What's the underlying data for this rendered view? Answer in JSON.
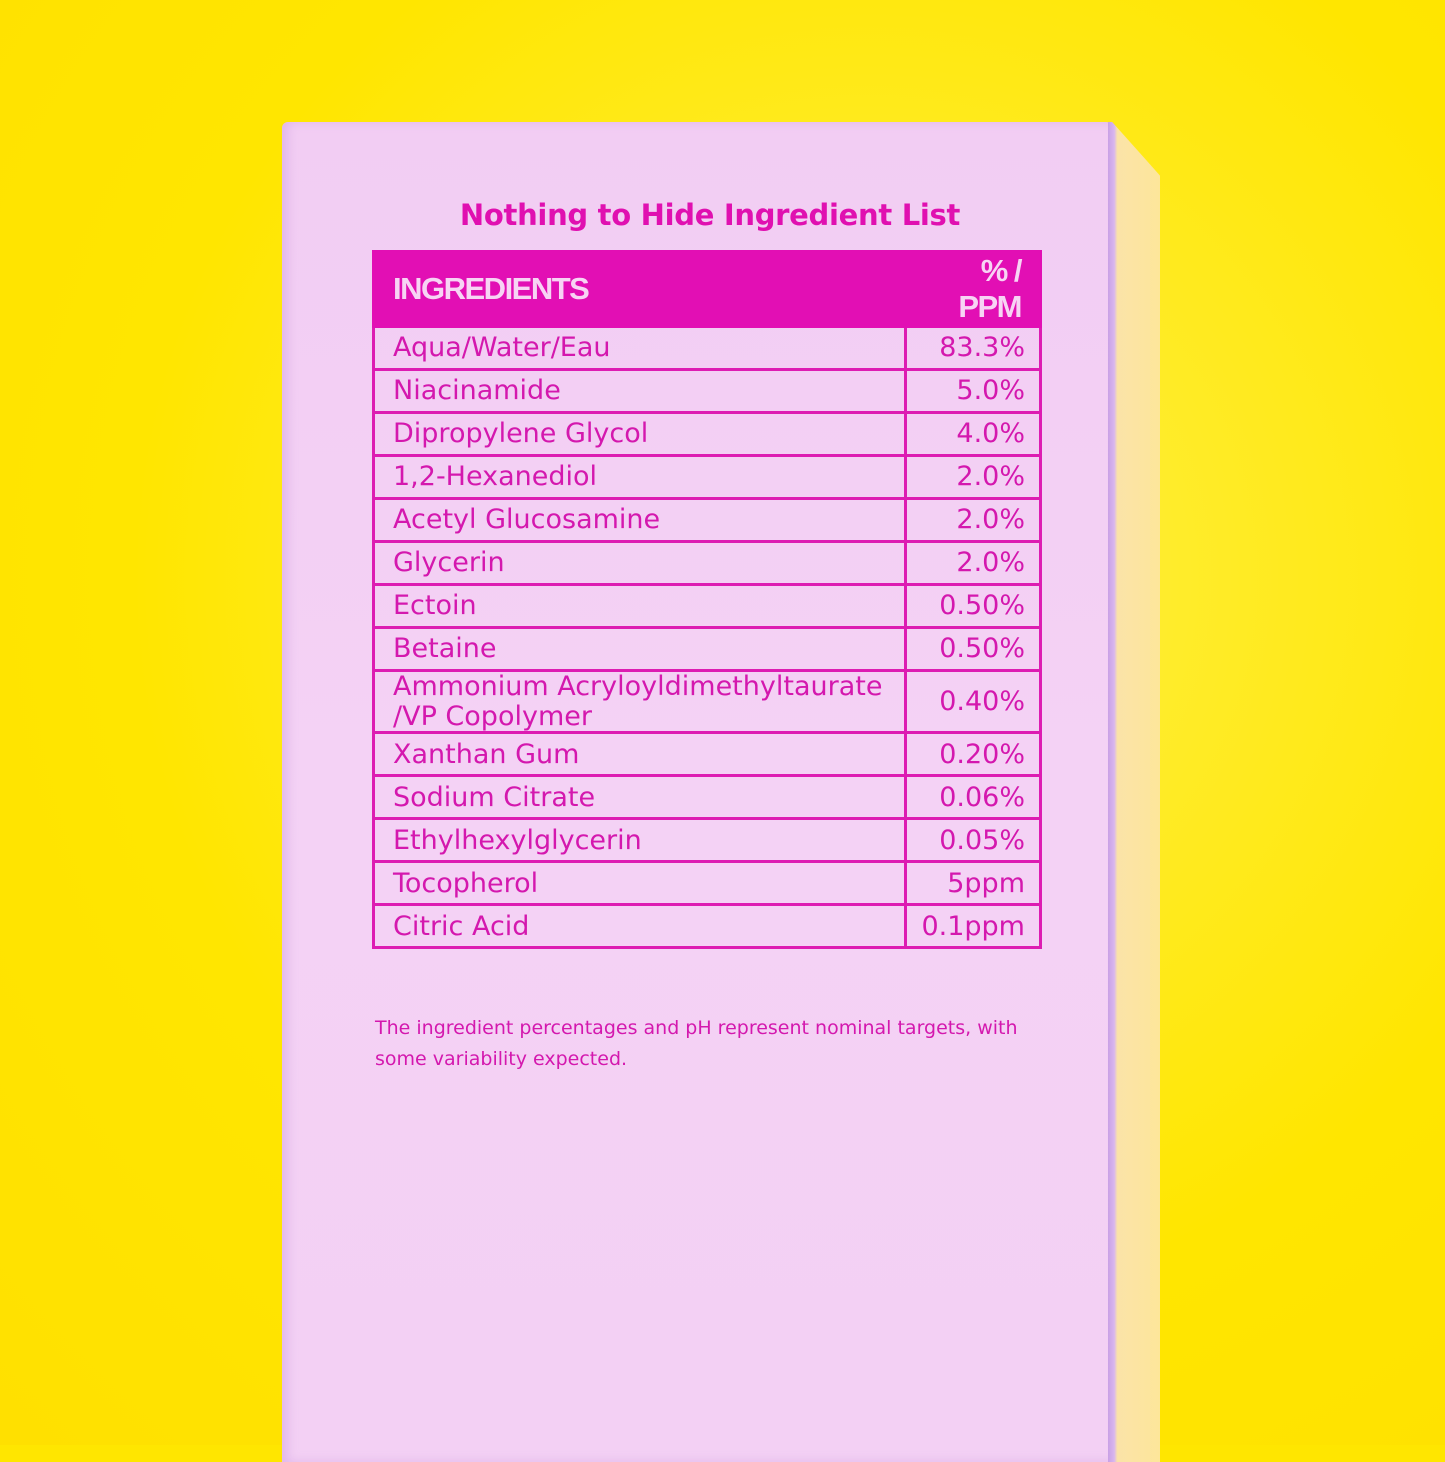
{
  "title": "Nothing to Hide Ingredient List",
  "table": {
    "headers": [
      "INGREDIENTS",
      "% / PPM"
    ],
    "rows": [
      {
        "name": "Aqua/Water/Eau",
        "value": "83.3%"
      },
      {
        "name": "Niacinamide",
        "value": "5.0%"
      },
      {
        "name": "Dipropylene Glycol",
        "value": "4.0%"
      },
      {
        "name": "1,2-Hexanediol",
        "value": "2.0%"
      },
      {
        "name": "Acetyl Glucosamine",
        "value": "2.0%"
      },
      {
        "name": "Glycerin",
        "value": "2.0%"
      },
      {
        "name": "Ectoin",
        "value": "0.50%"
      },
      {
        "name": "Betaine",
        "value": "0.50%"
      },
      {
        "name": "Ammonium Acryloyldimethyltaurate /VP Copolymer",
        "value": "0.40%"
      },
      {
        "name": "Xanthan Gum",
        "value": "0.20%"
      },
      {
        "name": "Sodium Citrate",
        "value": "0.06%"
      },
      {
        "name": "Ethylhexylglycerin",
        "value": "0.05%"
      },
      {
        "name": "Tocopherol",
        "value": "5ppm"
      },
      {
        "name": "Citric Acid",
        "value": "0.1ppm"
      }
    ]
  },
  "note": "The ingredient percentages and pH represent nominal targets, with some variability expected.",
  "colors": {
    "background": "#ffe600",
    "box": "#f3d0f4",
    "accent": "#e20fb4"
  }
}
